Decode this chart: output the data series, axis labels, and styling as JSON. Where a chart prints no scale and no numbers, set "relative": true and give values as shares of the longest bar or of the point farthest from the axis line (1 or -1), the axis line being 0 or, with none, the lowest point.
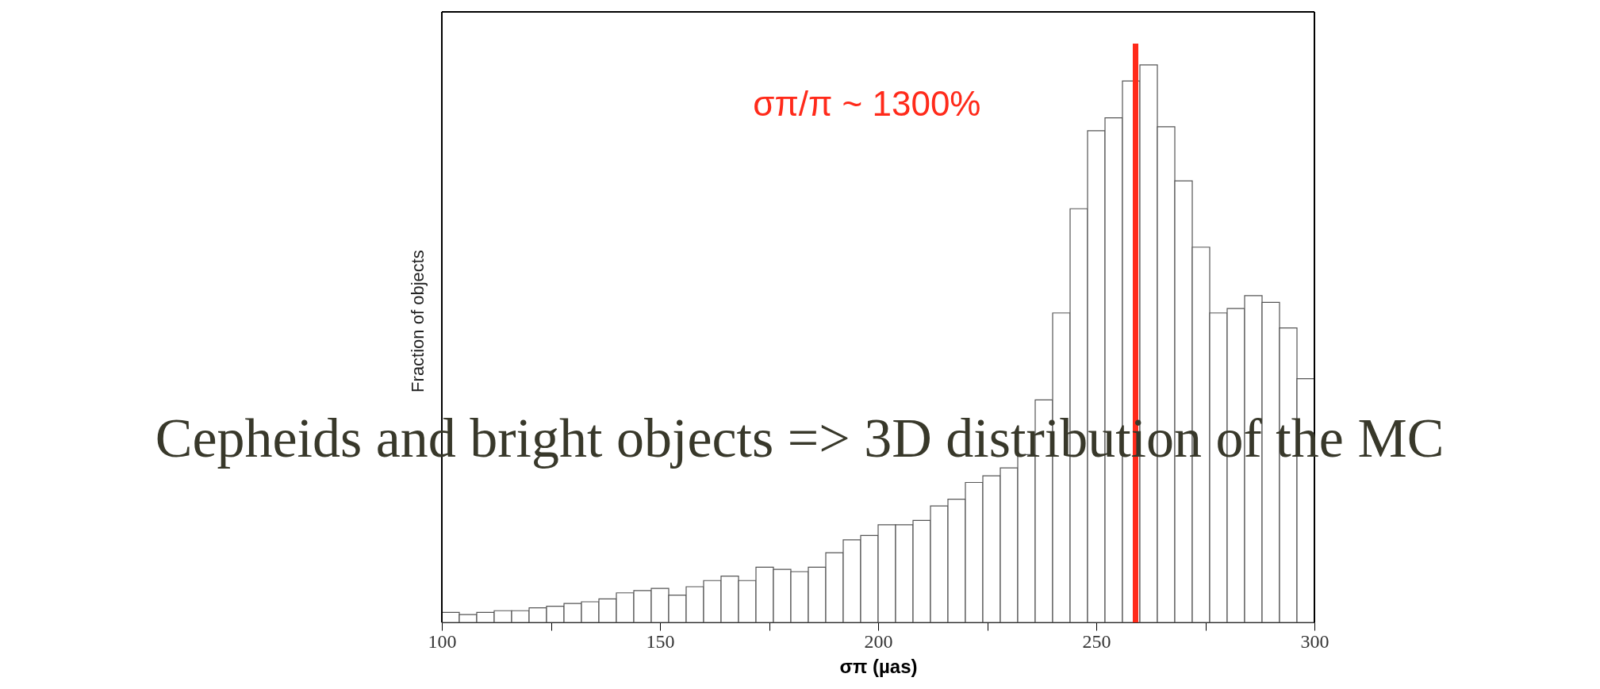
{
  "chart_data": {
    "type": "bar",
    "relative": true,
    "x": [
      102,
      106,
      110,
      114,
      118,
      122,
      126,
      130,
      134,
      138,
      142,
      146,
      150,
      154,
      158,
      162,
      166,
      170,
      174,
      178,
      182,
      186,
      190,
      194,
      198,
      202,
      206,
      210,
      214,
      218,
      222,
      226,
      230,
      234,
      238,
      242,
      246,
      250,
      254,
      258,
      262,
      266,
      270,
      274,
      278,
      282,
      286,
      290,
      294,
      298
    ],
    "values": [
      0.018,
      0.014,
      0.018,
      0.021,
      0.021,
      0.026,
      0.029,
      0.034,
      0.037,
      0.042,
      0.053,
      0.057,
      0.061,
      0.049,
      0.064,
      0.075,
      0.083,
      0.075,
      0.099,
      0.095,
      0.091,
      0.099,
      0.125,
      0.148,
      0.156,
      0.175,
      0.175,
      0.183,
      0.209,
      0.221,
      0.251,
      0.263,
      0.277,
      0.301,
      0.399,
      0.555,
      0.742,
      0.882,
      0.905,
      0.971,
      1,
      0.889,
      0.792,
      0.673,
      0.555,
      0.563,
      0.586,
      0.574,
      0.528,
      0.437
    ],
    "color": "#ffffff",
    "xlim": [
      100,
      300
    ],
    "xticks": [
      100,
      {
        "value": 125,
        "label": null
      },
      150,
      {
        "value": 175,
        "label": null
      },
      200,
      {
        "value": 225,
        "label": null
      },
      250,
      {
        "value": 275,
        "label": null
      },
      300
    ],
    "xlabel": "σπ (µas)",
    "ylabel": "Fraction of objects",
    "ref_lines": [
      {
        "axis": "x",
        "value": 259,
        "label": "σπ/π ~ 1300%",
        "color": "#ff2a1a"
      }
    ],
    "annotations": [
      "Cepheids and bright objects => 3D distribution of the MC"
    ],
    "grid": false
  }
}
